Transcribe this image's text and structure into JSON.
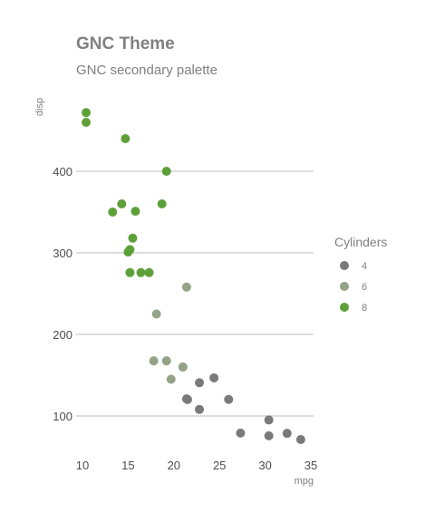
{
  "chart_data": {
    "type": "scatter",
    "title": "GNC Theme",
    "subtitle": "GNC secondary palette",
    "xlabel": "mpg",
    "ylabel": "disp",
    "xlim": [
      9,
      35
    ],
    "ylim": [
      60,
      480
    ],
    "x_ticks": [
      10,
      15,
      20,
      25,
      30,
      35
    ],
    "y_ticks": [
      100,
      200,
      300,
      400
    ],
    "grid": "horizontal",
    "legend": {
      "title": "Cylinders",
      "position": "right"
    },
    "series": [
      {
        "name": "4",
        "color": "#7a7a7a",
        "points": [
          {
            "x": 22.8,
            "y": 108.0
          },
          {
            "x": 24.4,
            "y": 146.7
          },
          {
            "x": 22.8,
            "y": 140.8
          },
          {
            "x": 32.4,
            "y": 78.7
          },
          {
            "x": 30.4,
            "y": 75.7
          },
          {
            "x": 33.9,
            "y": 71.1
          },
          {
            "x": 21.5,
            "y": 120.1
          },
          {
            "x": 27.3,
            "y": 79.0
          },
          {
            "x": 26.0,
            "y": 120.3
          },
          {
            "x": 30.4,
            "y": 95.1
          },
          {
            "x": 21.4,
            "y": 121.0
          }
        ]
      },
      {
        "name": "6",
        "color": "#94a387",
        "points": [
          {
            "x": 21.0,
            "y": 160.0
          },
          {
            "x": 21.0,
            "y": 160.0
          },
          {
            "x": 21.4,
            "y": 258.0
          },
          {
            "x": 18.1,
            "y": 225.0
          },
          {
            "x": 19.2,
            "y": 167.6
          },
          {
            "x": 17.8,
            "y": 167.6
          },
          {
            "x": 19.7,
            "y": 145.0
          }
        ]
      },
      {
        "name": "8",
        "color": "#5da039",
        "points": [
          {
            "x": 18.7,
            "y": 360.0
          },
          {
            "x": 14.3,
            "y": 360.0
          },
          {
            "x": 16.4,
            "y": 275.8
          },
          {
            "x": 17.3,
            "y": 275.8
          },
          {
            "x": 15.2,
            "y": 275.8
          },
          {
            "x": 10.4,
            "y": 472.0
          },
          {
            "x": 10.4,
            "y": 460.0
          },
          {
            "x": 14.7,
            "y": 440.0
          },
          {
            "x": 15.5,
            "y": 318.0
          },
          {
            "x": 15.2,
            "y": 304.0
          },
          {
            "x": 13.3,
            "y": 350.0
          },
          {
            "x": 19.2,
            "y": 400.0
          },
          {
            "x": 15.8,
            "y": 351.0
          },
          {
            "x": 15.0,
            "y": 301.0
          }
        ]
      }
    ]
  }
}
